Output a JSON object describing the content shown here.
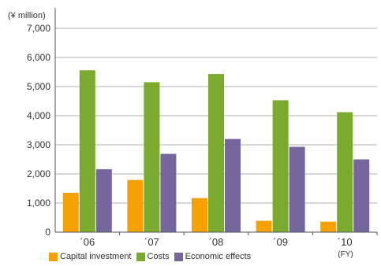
{
  "chart_data": {
    "type": "bar",
    "unit_label": "(¥ million)",
    "x_unit_label": "(FY)",
    "categories": [
      "´06",
      "´07",
      "´08",
      "´09",
      "´10"
    ],
    "ylim": [
      0,
      7000
    ],
    "yticks": [
      0,
      1000,
      2000,
      3000,
      4000,
      5000,
      6000,
      7000
    ],
    "ytick_labels": [
      "0",
      "1,000",
      "2,000",
      "3,000",
      "4,000",
      "5,000",
      "6,000",
      "7,000"
    ],
    "grid": true,
    "legend_position": "bottom",
    "series": [
      {
        "name": "Capital investment",
        "color": "#f5a100",
        "values": [
          1350,
          1790,
          1170,
          390,
          360
        ]
      },
      {
        "name": "Costs",
        "color": "#7aab2e",
        "values": [
          5560,
          5150,
          5430,
          4530,
          4120
        ]
      },
      {
        "name": "Economic effects",
        "color": "#75679e",
        "values": [
          2160,
          2690,
          3200,
          2930,
          2500
        ]
      }
    ]
  }
}
